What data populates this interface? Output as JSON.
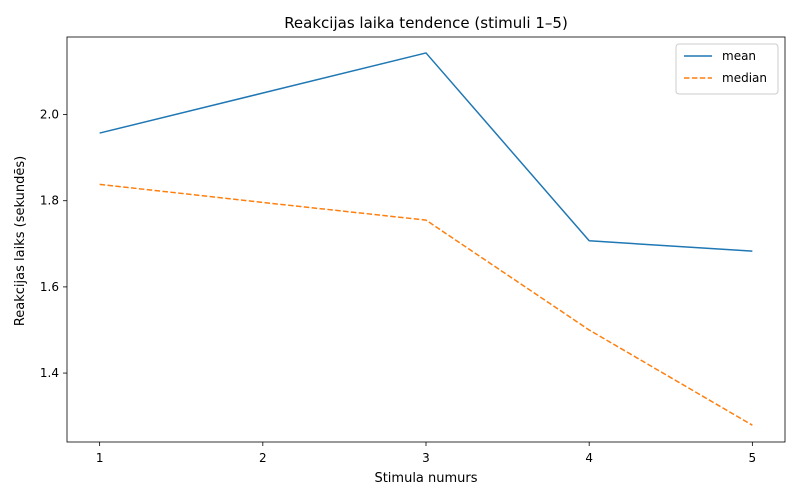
{
  "chart_data": {
    "type": "line",
    "title": "Reakcijas laika tendence (stimuli 1–5)",
    "xlabel": "Stimula numurs",
    "ylabel": "Reakcijas laiks (sekundēs)",
    "x": [
      1,
      2,
      3,
      4,
      5
    ],
    "xticks": [
      "1",
      "2",
      "3",
      "4",
      "5"
    ],
    "yticks": [
      "1.4",
      "1.6",
      "1.8",
      "2.0"
    ],
    "xlim": [
      0.8,
      5.2
    ],
    "ylim": [
      1.24,
      2.18
    ],
    "grid": false,
    "legend_position": "top-right",
    "series": [
      {
        "name": "mean",
        "color": "#1f77b4",
        "dash": "solid",
        "values": [
          1.957,
          2.05,
          2.143,
          1.707,
          1.683
        ]
      },
      {
        "name": "median",
        "color": "#ff7f0e",
        "dash": "dashed",
        "values": [
          1.838,
          1.796,
          1.755,
          1.5,
          1.279
        ]
      }
    ]
  }
}
